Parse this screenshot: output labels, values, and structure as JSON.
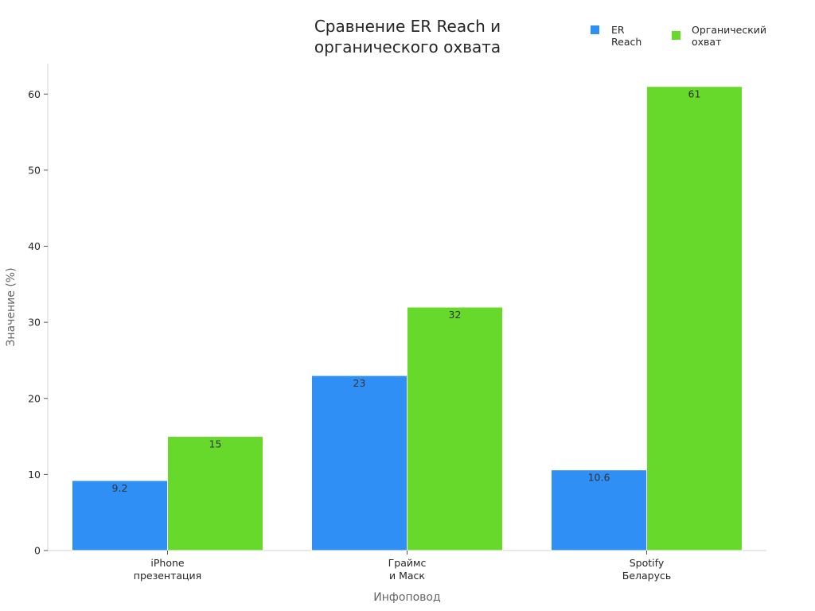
{
  "chart_data": {
    "type": "bar",
    "title": "Сравнение ER Reach и\nорганического охвата",
    "xlabel": "Инфоповод",
    "ylabel": "Значение (%)",
    "categories": [
      "iPhone\nпрезентация",
      "Граймс\nи Маск",
      "Spotify\nБеларусь"
    ],
    "series": [
      {
        "name": "ER Reach",
        "color": "#2f8ff5",
        "values": [
          9.2,
          23,
          10.6
        ],
        "labels": [
          "9.2",
          "23",
          "10.6"
        ]
      },
      {
        "name": "Органический\nохват",
        "color": "#66d92a",
        "values": [
          15,
          32,
          61
        ],
        "labels": [
          "15",
          "32",
          "61"
        ]
      }
    ],
    "ylim": [
      0,
      64
    ],
    "yticks": [
      0,
      10,
      20,
      30,
      40,
      50,
      60
    ],
    "grid": false,
    "legend_position": "top-right"
  }
}
